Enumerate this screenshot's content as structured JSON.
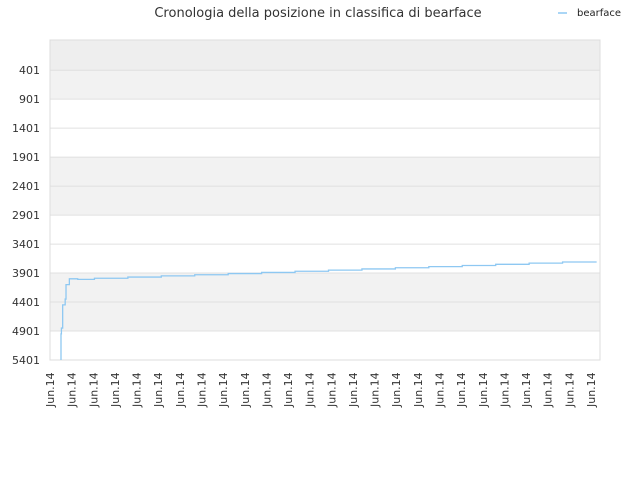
{
  "chart_data": {
    "type": "line",
    "title": "Cronologia della posizione in classifica di bearface",
    "xlabel": "",
    "ylabel": "",
    "y_inverted": true,
    "ylim": [
      5401,
      0
    ],
    "y_ticks": [
      401,
      901,
      1401,
      1901,
      2401,
      2901,
      3401,
      3901,
      4401,
      4901,
      5401
    ],
    "x_tick_labels": [
      "Jun.14",
      "Jun.14",
      "Jun.14",
      "Jun.14",
      "Jun.14",
      "Jun.14",
      "Jun.14",
      "Jun.14",
      "Jun.14",
      "Jun.14",
      "Jun.14",
      "Jun.14",
      "Jun.14",
      "Jun.14",
      "Jun.14",
      "Jun.14",
      "Jun.14",
      "Jun.14",
      "Jun.14",
      "Jun.14",
      "Jun.14",
      "Jun.14",
      "Jun.14",
      "Jun.14",
      "Jun.14",
      "Jun.14"
    ],
    "grid": true,
    "legend_position": "top-right",
    "colors": {
      "line": "#8ec8f2",
      "band": "#f2f2f2",
      "grid": "#e0e0e0"
    },
    "series": [
      {
        "name": "bearface",
        "x": [
          0.0,
          0.0,
          0.05,
          0.2,
          0.5,
          0.6,
          1.0,
          2.0,
          4.0,
          8.0,
          12.0,
          16.0,
          20.0,
          24.0,
          28.0,
          32.0,
          36.0,
          40.0,
          44.0,
          48.0,
          52.0,
          56.0,
          60.0,
          64.0
        ],
        "y": [
          5401,
          4950,
          4850,
          4450,
          4350,
          4100,
          4000,
          4010,
          3990,
          3970,
          3950,
          3930,
          3910,
          3890,
          3870,
          3850,
          3830,
          3810,
          3790,
          3770,
          3750,
          3730,
          3710,
          3700
        ]
      }
    ]
  }
}
